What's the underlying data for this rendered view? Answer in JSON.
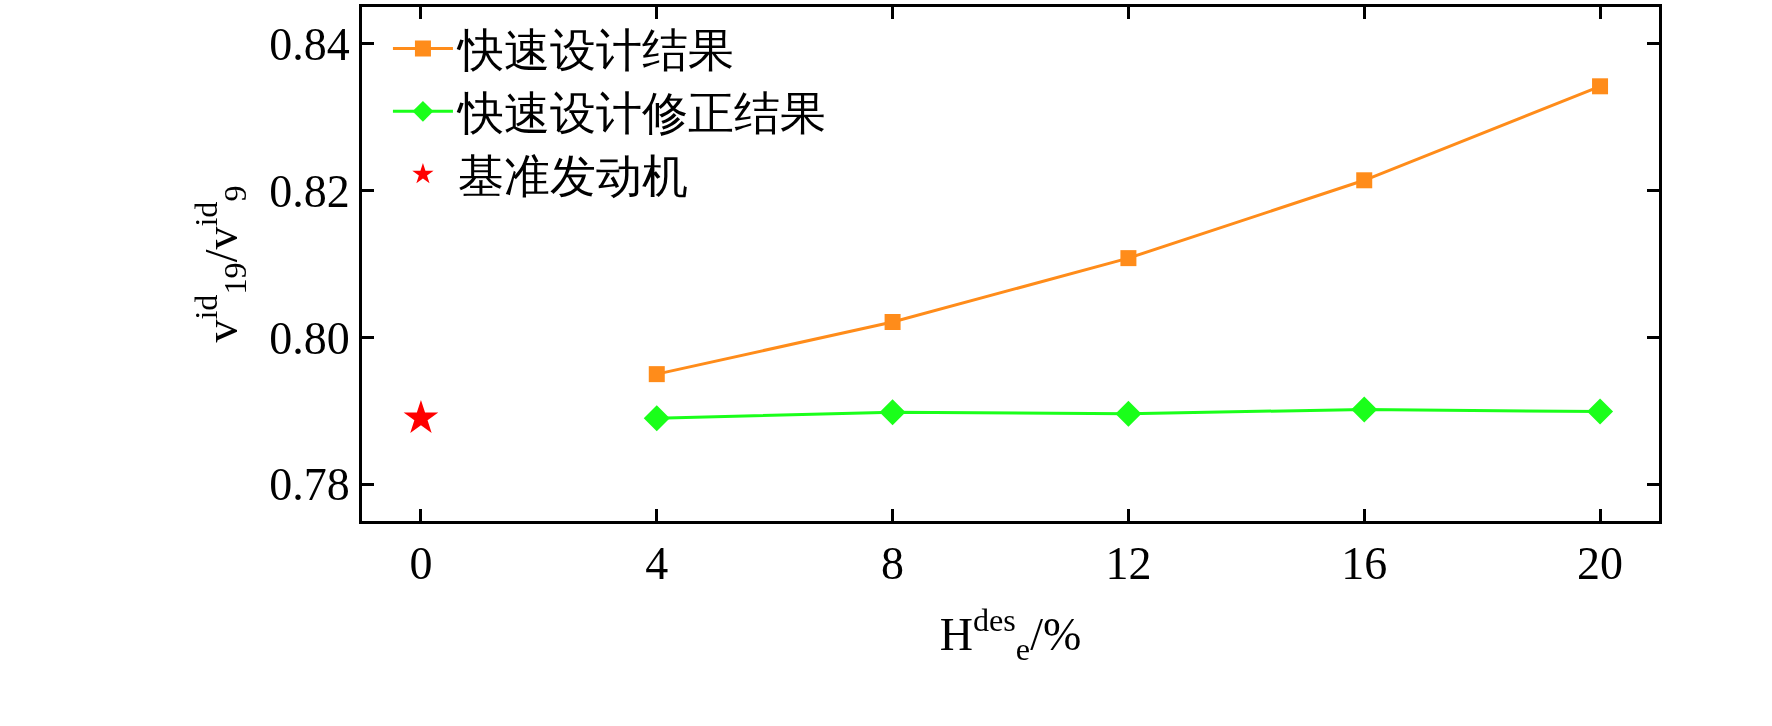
{
  "chart_data": {
    "type": "line",
    "xlabel": "H$^{des}$$_{e}$/%",
    "ylabel": "v$^{id}$$_{19}$/v$^{id}$$_{9}$",
    "xlim": [
      -1,
      21
    ],
    "xticks": [
      0,
      4,
      8,
      12,
      16,
      20
    ],
    "ylim": [
      0.775,
      0.845
    ],
    "yticks": [
      {
        "value": 0.78,
        "label": "0.78"
      },
      {
        "value": 0.8,
        "label": "0.80"
      },
      {
        "value": 0.82,
        "label": "0.82"
      },
      {
        "value": 0.84,
        "label": "0.84"
      }
    ],
    "legend": "top left",
    "series": [
      {
        "name": "快速设计结果",
        "color": "#ff8c1a",
        "marker": "square",
        "x": [
          4,
          8,
          12,
          16,
          20
        ],
        "values": [
          0.795,
          0.8021,
          0.8108,
          0.8214,
          0.8342
        ]
      },
      {
        "name": "快速设计修正结果",
        "color": "#1aff1a",
        "marker": "diamond",
        "x": [
          4,
          8,
          12,
          16,
          20
        ],
        "values": [
          0.789,
          0.7898,
          0.7896,
          0.7902,
          0.7899
        ]
      },
      {
        "name": "基准发动机",
        "type": "scatter",
        "color": "#ff0000",
        "marker": "star",
        "x": [
          0
        ],
        "values": [
          0.789
        ]
      }
    ]
  }
}
